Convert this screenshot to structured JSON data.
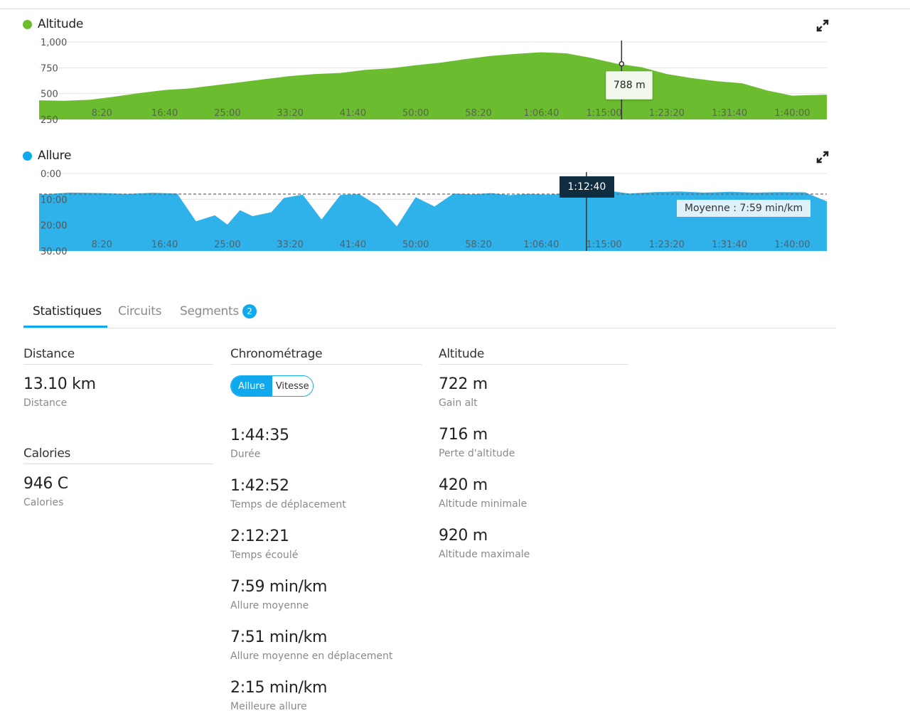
{
  "altitude_chart": {
    "title": "Altitude",
    "color": "#6bbd2f",
    "y_ticks": [
      "1,000",
      "750",
      "500",
      "250"
    ],
    "x_ticks": [
      "8:20",
      "16:40",
      "25:00",
      "33:20",
      "41:40",
      "50:00",
      "58:20",
      "1:06:40",
      "1:15:00",
      "1:23:20",
      "1:31:40",
      "1:40:00"
    ],
    "tooltip": "788 m",
    "expand_icon": "expand-icon"
  },
  "pace_chart": {
    "title": "Allure",
    "color": "#2fb1ea",
    "y_ticks": [
      "0:00",
      "10:00",
      "20:00",
      "30:00"
    ],
    "x_ticks": [
      "8:20",
      "16:40",
      "25:00",
      "33:20",
      "41:40",
      "50:00",
      "58:20",
      "1:06:40",
      "1:15:00",
      "1:23:20",
      "1:31:40",
      "1:40:00"
    ],
    "cursor_label": "1:12:40",
    "average_label": "Moyenne : 7:59 min/km",
    "expand_icon": "expand-icon"
  },
  "chart_data": [
    {
      "type": "area",
      "xlim": [
        0,
        6275
      ],
      "ylim": [
        250,
        1000
      ],
      "x_ticks_seconds": [
        500,
        1000,
        1500,
        2000,
        2500,
        3000,
        3500,
        4000,
        4500,
        5000,
        5500,
        6000
      ],
      "cursor_x": 4640,
      "cursor_y": 788,
      "x": [
        0,
        200,
        400,
        600,
        800,
        1000,
        1200,
        1400,
        1600,
        1800,
        2000,
        2200,
        2400,
        2600,
        2800,
        3000,
        3200,
        3400,
        3600,
        3800,
        4000,
        4200,
        4400,
        4600,
        4800,
        5000,
        5200,
        5400,
        5600,
        5800,
        6000,
        6275
      ],
      "y": [
        435,
        430,
        440,
        470,
        505,
        535,
        550,
        580,
        610,
        640,
        670,
        690,
        700,
        730,
        745,
        775,
        800,
        835,
        865,
        885,
        900,
        890,
        845,
        790,
        755,
        690,
        650,
        620,
        600,
        530,
        480,
        490
      ]
    },
    {
      "type": "area",
      "xlim": [
        0,
        6275
      ],
      "ylim": [
        0,
        30
      ],
      "ylim_label_min": "0:00",
      "y_reversed": true,
      "average": 7.98,
      "cursor_x": 4360,
      "x": [
        0,
        250,
        500,
        700,
        900,
        1100,
        1250,
        1400,
        1500,
        1600,
        1700,
        1850,
        1950,
        2100,
        2250,
        2400,
        2550,
        2700,
        2850,
        3000,
        3150,
        3300,
        3450,
        3600,
        3750,
        3900,
        4050,
        4200,
        4350,
        4500,
        4700,
        4900,
        5100,
        5300,
        5500,
        5700,
        5900,
        6100,
        6275
      ],
      "y": [
        8.2,
        7.4,
        7.6,
        7.9,
        7.5,
        7.8,
        18.5,
        16.2,
        19.8,
        14.2,
        16.5,
        15.0,
        9.5,
        8.2,
        17.8,
        8.3,
        8.0,
        12.5,
        20.5,
        9.2,
        12.8,
        7.8,
        8.1,
        7.6,
        8.4,
        7.9,
        8.2,
        7.9,
        6.4,
        6.4,
        7.8,
        7.2,
        7.0,
        7.4,
        7.1,
        7.4,
        7.2,
        7.3,
        10.8
      ]
    }
  ],
  "tabs": {
    "items": [
      "Statistiques",
      "Circuits",
      "Segments"
    ],
    "segments_badge": "2"
  },
  "distance": {
    "heading": "Distance",
    "value": "13.10 km",
    "label": "Distance"
  },
  "calories": {
    "heading": "Calories",
    "value": "946 C",
    "label": "Calories"
  },
  "timing": {
    "heading": "Chronométrage",
    "toggle": {
      "allure": "Allure",
      "vitesse": "Vitesse"
    },
    "stats": [
      {
        "value": "1:44:35",
        "label": "Durée"
      },
      {
        "value": "1:42:52",
        "label": "Temps de déplacement"
      },
      {
        "value": "2:12:21",
        "label": "Temps écoulé"
      },
      {
        "value": "7:59 min/km",
        "label": "Allure moyenne"
      },
      {
        "value": "7:51 min/km",
        "label": "Allure moyenne en déplacement"
      },
      {
        "value": "2:15 min/km",
        "label": "Meilleure allure"
      }
    ]
  },
  "altitude_stats": {
    "heading": "Altitude",
    "stats": [
      {
        "value": "722 m",
        "label": "Gain alt"
      },
      {
        "value": "716 m",
        "label": "Perte d'altitude"
      },
      {
        "value": "420 m",
        "label": "Altitude minimale"
      },
      {
        "value": "920 m",
        "label": "Altitude maximale"
      }
    ]
  }
}
